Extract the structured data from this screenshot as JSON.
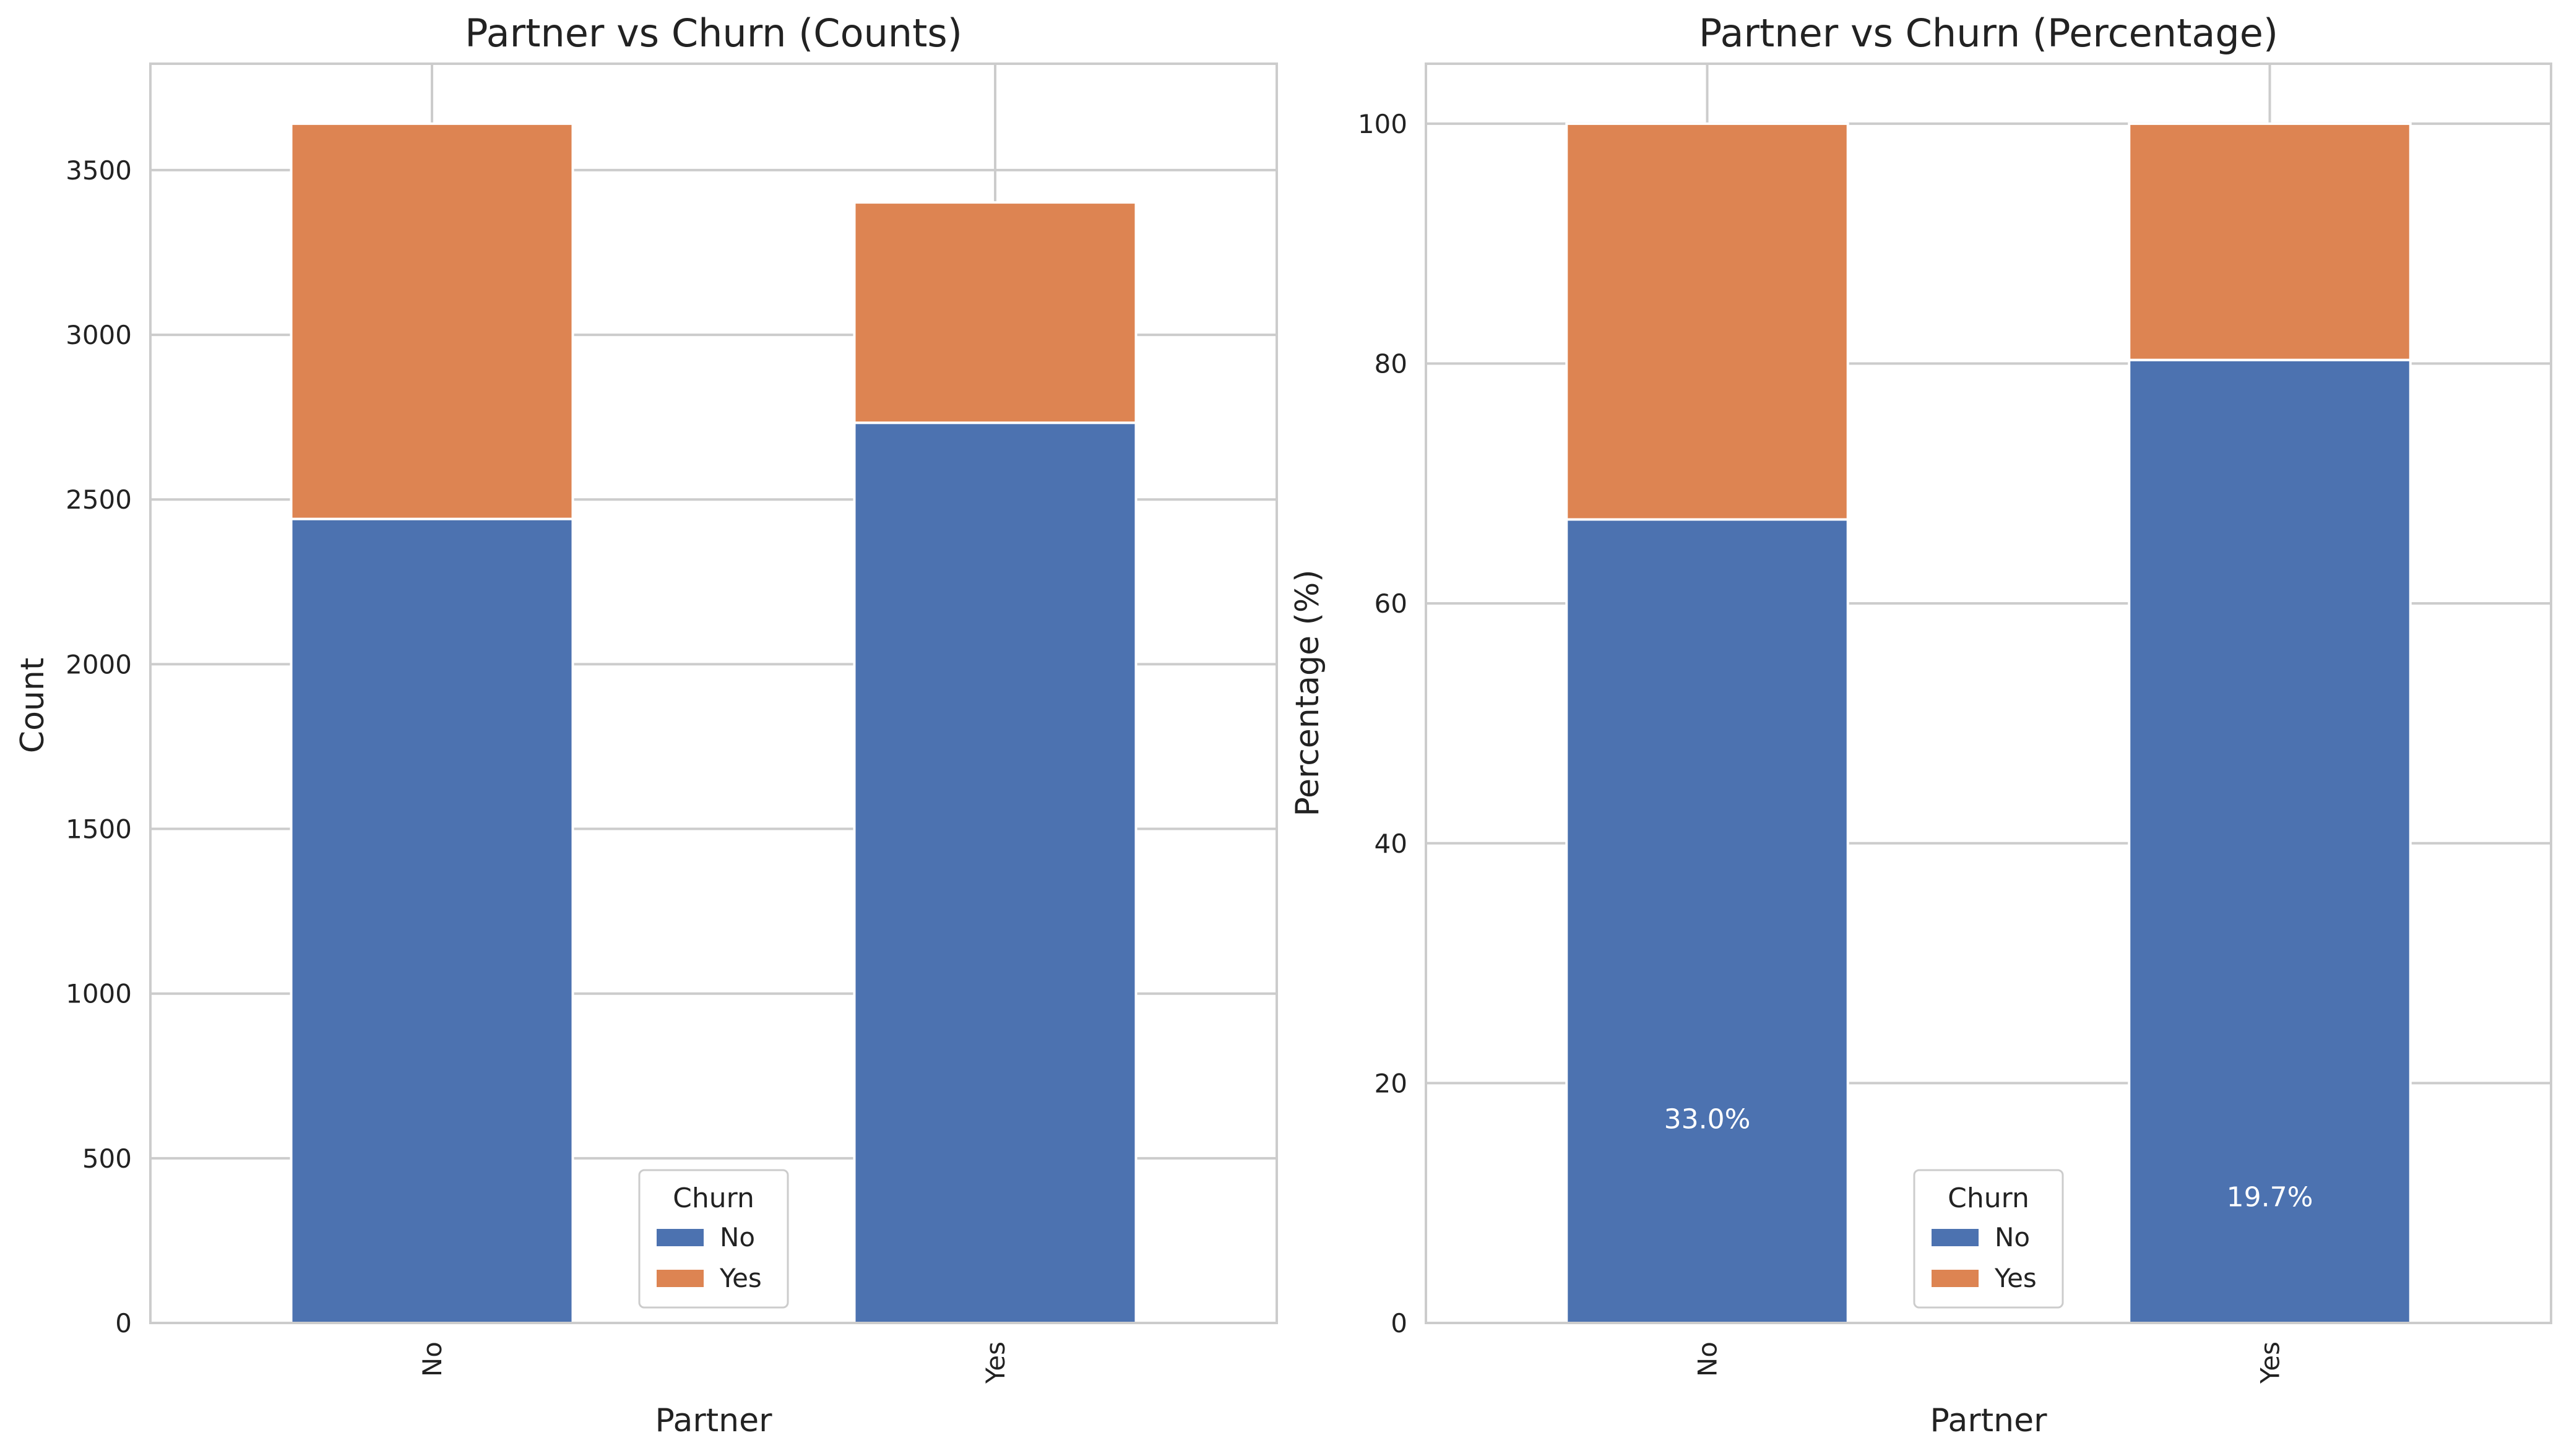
{
  "colors": {
    "no": "#4c72b0",
    "yes": "#dd8452",
    "grid": "#cccccc",
    "text": "#222222"
  },
  "chart_data": [
    {
      "type": "bar",
      "stacked": true,
      "title": "Partner vs Churn (Counts)",
      "xlabel": "Partner",
      "ylabel": "Count",
      "categories": [
        "No",
        "Yes"
      ],
      "series": [
        {
          "name": "No",
          "values": [
            2441,
            2733
          ]
        },
        {
          "name": "Yes",
          "values": [
            1200,
            669
          ]
        }
      ],
      "ylim": [
        0,
        3823
      ],
      "yticks": [
        0,
        500,
        1000,
        1500,
        2000,
        2500,
        3000,
        3500
      ],
      "legend": {
        "title": "Churn",
        "position": "lower-center"
      },
      "grid": true
    },
    {
      "type": "bar",
      "stacked": true,
      "title": "Partner vs Churn (Percentage)",
      "xlabel": "Partner",
      "ylabel": "Percentage (%)",
      "categories": [
        "No",
        "Yes"
      ],
      "series": [
        {
          "name": "No",
          "values": [
            67.0,
            80.3
          ]
        },
        {
          "name": "Yes",
          "values": [
            33.0,
            19.7
          ]
        }
      ],
      "ylim": [
        0,
        105
      ],
      "yticks": [
        0,
        20,
        40,
        60,
        80,
        100
      ],
      "data_labels": [
        {
          "category": "No",
          "text": "33.0%",
          "y": 17
        },
        {
          "category": "Yes",
          "text": "19.7%",
          "y": 10.5
        }
      ],
      "legend": {
        "title": "Churn",
        "position": "lower-center"
      },
      "grid": true
    }
  ]
}
